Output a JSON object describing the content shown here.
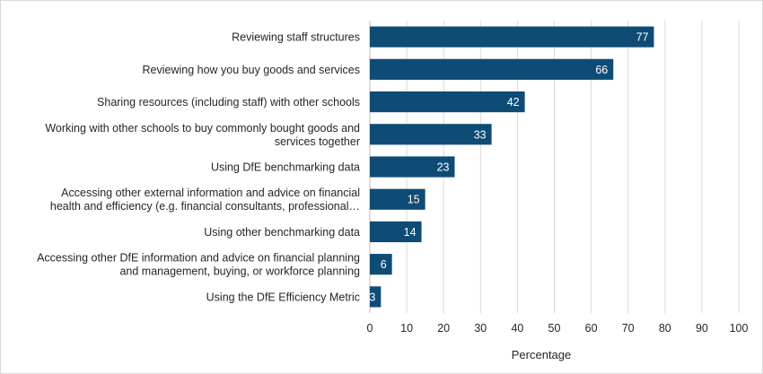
{
  "chart_data": {
    "type": "bar",
    "orientation": "horizontal",
    "categories": [
      [
        "Reviewing staff structures"
      ],
      [
        "Reviewing how you buy goods and services"
      ],
      [
        "Sharing resources (including staff) with other schools"
      ],
      [
        "Working with other schools to buy commonly bought goods and",
        "services together"
      ],
      [
        "Using DfE benchmarking data"
      ],
      [
        "Accessing other external information and advice on financial",
        "health and efficiency (e.g. financial consultants, professional…"
      ],
      [
        "Using other benchmarking data"
      ],
      [
        "Accessing other DfE information and advice on financial planning",
        "and management, buying, or workforce planning"
      ],
      [
        "Using the DfE Efficiency Metric"
      ]
    ],
    "values": [
      77,
      66,
      42,
      33,
      23,
      15,
      14,
      6,
      3
    ],
    "data_labels": [
      "77",
      "66",
      "42",
      "33",
      "23",
      "15",
      "14",
      "6",
      "3"
    ],
    "xlabel": "Percentage",
    "xlim": [
      0,
      100
    ],
    "xticks": [
      "0",
      "10",
      "20",
      "30",
      "40",
      "50",
      "60",
      "70",
      "80",
      "90",
      "100"
    ],
    "grid": "vertical",
    "legend": "none",
    "bar_color": "#0f4c75",
    "grid_color": "#d9d9d9"
  }
}
